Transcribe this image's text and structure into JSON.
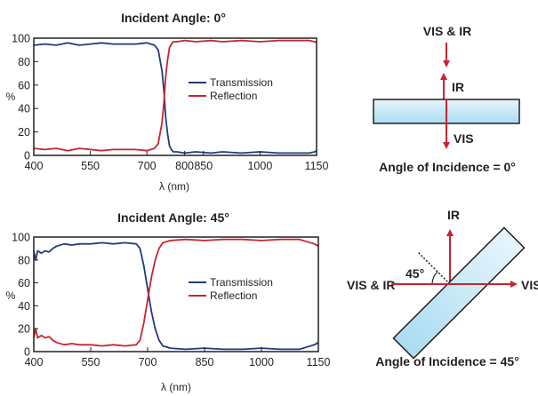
{
  "chart_data": [
    {
      "type": "line",
      "title": "Incident Angle: 0°",
      "xlabel": "λ (nm)",
      "ylabel": "%",
      "xlim": [
        400,
        1150
      ],
      "ylim": [
        0,
        100
      ],
      "xticks": [
        400,
        550,
        700,
        800,
        850,
        1000,
        1150
      ],
      "yticks": [
        0,
        20,
        40,
        60,
        80,
        100
      ],
      "legend_position": "center-right",
      "series": [
        {
          "name": "Transmission",
          "color": "#233a7a",
          "x": [
            400,
            430,
            460,
            490,
            520,
            550,
            580,
            610,
            640,
            670,
            700,
            720,
            730,
            740,
            745,
            750,
            755,
            760,
            765,
            770,
            780,
            800,
            830,
            870,
            900,
            950,
            1000,
            1050,
            1100,
            1130,
            1145,
            1150
          ],
          "y": [
            94,
            95,
            94,
            96,
            94,
            95,
            96,
            95,
            95,
            95,
            96,
            94,
            90,
            72,
            55,
            32,
            18,
            8,
            5,
            3,
            3,
            2,
            3,
            2,
            3,
            2,
            3,
            2,
            2,
            2,
            3,
            4
          ]
        },
        {
          "name": "Reflection",
          "color": "#c8242f",
          "x": [
            400,
            430,
            460,
            490,
            520,
            550,
            580,
            610,
            640,
            670,
            700,
            720,
            730,
            740,
            745,
            750,
            755,
            760,
            765,
            770,
            780,
            800,
            830,
            870,
            900,
            950,
            1000,
            1050,
            1100,
            1130,
            1145,
            1150
          ],
          "y": [
            6,
            5,
            6,
            4,
            6,
            5,
            4,
            5,
            5,
            5,
            4,
            6,
            10,
            28,
            45,
            68,
            82,
            92,
            95,
            97,
            97,
            98,
            97,
            98,
            97,
            98,
            97,
            98,
            98,
            98,
            97,
            96
          ]
        }
      ]
    },
    {
      "type": "line",
      "title": "Incident Angle: 45°",
      "xlabel": "λ (nm)",
      "ylabel": "%",
      "xlim": [
        400,
        1150
      ],
      "ylim": [
        0,
        100
      ],
      "xticks": [
        400,
        550,
        700,
        850,
        1000,
        1150
      ],
      "yticks": [
        0,
        20,
        40,
        60,
        80,
        100
      ],
      "legend_position": "center-right",
      "series": [
        {
          "name": "Transmission",
          "color": "#233a7a",
          "x": [
            400,
            405,
            410,
            420,
            430,
            440,
            450,
            460,
            480,
            500,
            520,
            550,
            580,
            610,
            640,
            670,
            680,
            690,
            700,
            710,
            720,
            730,
            740,
            760,
            800,
            850,
            900,
            950,
            1000,
            1050,
            1100,
            1120,
            1140,
            1150
          ],
          "y": [
            88,
            80,
            88,
            86,
            88,
            87,
            90,
            92,
            94,
            93,
            94,
            94,
            95,
            94,
            95,
            94,
            90,
            75,
            55,
            35,
            20,
            10,
            5,
            3,
            2,
            3,
            2,
            2,
            3,
            2,
            2,
            4,
            6,
            8
          ]
        },
        {
          "name": "Reflection",
          "color": "#c8242f",
          "x": [
            400,
            405,
            410,
            420,
            430,
            440,
            450,
            460,
            480,
            500,
            520,
            550,
            580,
            610,
            640,
            670,
            680,
            690,
            700,
            710,
            720,
            730,
            740,
            760,
            800,
            850,
            900,
            950,
            1000,
            1050,
            1100,
            1120,
            1140,
            1150
          ],
          "y": [
            12,
            20,
            12,
            14,
            12,
            13,
            10,
            8,
            6,
            7,
            6,
            6,
            5,
            6,
            5,
            6,
            10,
            25,
            45,
            65,
            80,
            90,
            95,
            97,
            98,
            97,
            98,
            98,
            97,
            98,
            98,
            96,
            94,
            92
          ]
        }
      ]
    }
  ],
  "diagram_top": {
    "input_label": "VIS & IR",
    "reflected_label": "IR",
    "transmitted_label": "VIS",
    "caption": "Angle of Incidence = 0°"
  },
  "diagram_bottom": {
    "reflected_label": "IR",
    "input_label": "VIS & IR",
    "transmitted_label": "VIS",
    "angle_label": "45°",
    "caption": "Angle of Incidence = 45°"
  }
}
